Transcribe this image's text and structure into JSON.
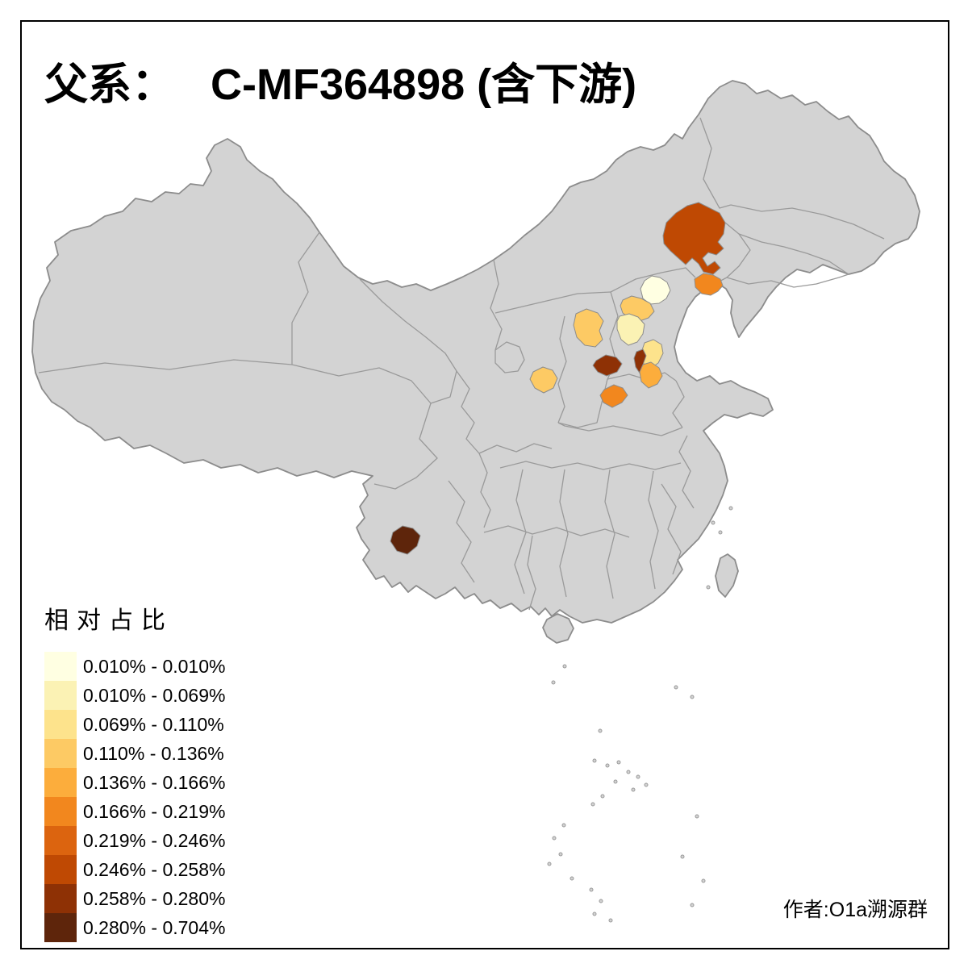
{
  "title": {
    "prefix": "父系：",
    "main": "C-MF364898 (含下游)"
  },
  "attribution": "作者:O1a溯源群",
  "legend": {
    "title": "相对占比",
    "entries": [
      {
        "label": "0.010% - 0.010%",
        "color": "#FFFFE2"
      },
      {
        "label": "0.010% - 0.069%",
        "color": "#FBF2B4"
      },
      {
        "label": "0.069% - 0.110%",
        "color": "#FDE38C"
      },
      {
        "label": "0.110% - 0.136%",
        "color": "#FDCA64"
      },
      {
        "label": "0.136% - 0.166%",
        "color": "#FCAD3C"
      },
      {
        "label": "0.166% - 0.219%",
        "color": "#F2871E"
      },
      {
        "label": "0.219% - 0.246%",
        "color": "#DC640F"
      },
      {
        "label": "0.246% - 0.258%",
        "color": "#BF4903"
      },
      {
        "label": "0.258% - 0.280%",
        "color": "#8E3105"
      },
      {
        "label": "0.280% - 0.704%",
        "color": "#5E250B"
      }
    ]
  },
  "map": {
    "sea_color": "#FFFFFF",
    "land_color": "#D3D3D3",
    "boundary_color": "#8C8C8C",
    "regions": [
      {
        "id": "inner-mongolia-southeast",
        "range": "0.246% - 0.258%",
        "color": "#BF4903"
      },
      {
        "id": "liaoning-coastal",
        "range": "0.166% - 0.219%",
        "color": "#F2871E"
      },
      {
        "id": "beijing-area",
        "range": "0.010% - 0.010%",
        "color": "#FFFFE2"
      },
      {
        "id": "hebei-west",
        "range": "0.110% - 0.136%",
        "color": "#FDCA64"
      },
      {
        "id": "hebei-central-pale",
        "range": "0.010% - 0.069%",
        "color": "#FBF2B4"
      },
      {
        "id": "hebei-south-light",
        "range": "0.069% - 0.110%",
        "color": "#FDE38C"
      },
      {
        "id": "shanxi-north",
        "range": "0.110% - 0.136%",
        "color": "#FDCA64"
      },
      {
        "id": "shaanxi-central",
        "range": "0.110% - 0.136%",
        "color": "#FDCA64"
      },
      {
        "id": "shanxi-southeast-dark",
        "range": "0.258% - 0.280%",
        "color": "#8E3105"
      },
      {
        "id": "henan-north-dark",
        "range": "0.258% - 0.280%",
        "color": "#8E3105"
      },
      {
        "id": "henan-northeast-light-orange",
        "range": "0.136% - 0.166%",
        "color": "#FCAD3C"
      },
      {
        "id": "henan-west-orange",
        "range": "0.166% - 0.219%",
        "color": "#F2871E"
      },
      {
        "id": "yunnan-west-darkest",
        "range": "0.280% - 0.704%",
        "color": "#5E250B"
      }
    ]
  }
}
